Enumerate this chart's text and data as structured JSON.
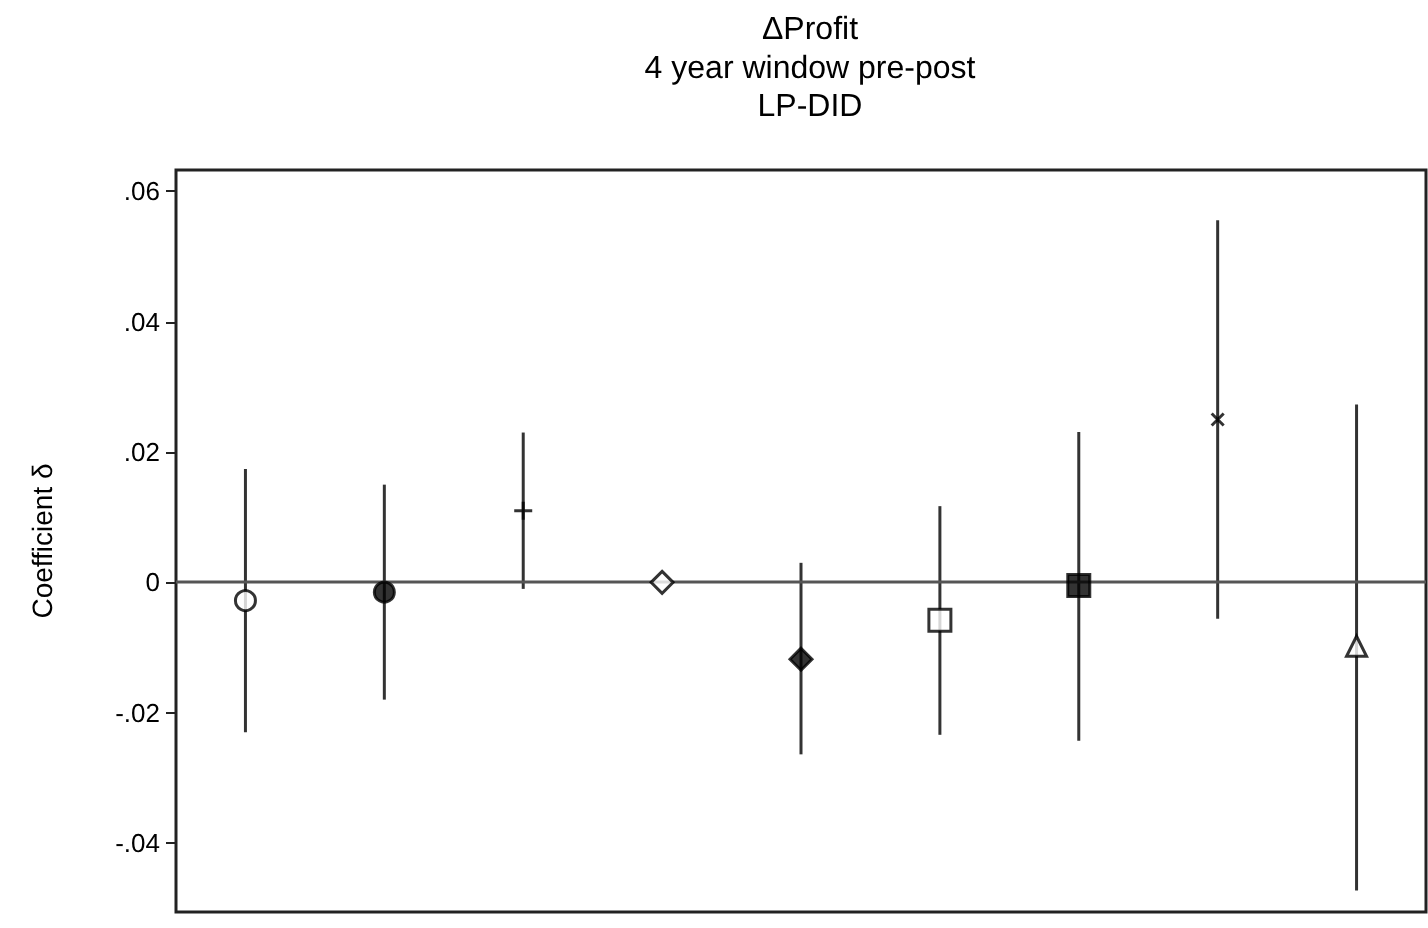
{
  "chart_data": {
    "type": "scatter",
    "title": "ΔProfit",
    "subtitle": "4 year window pre-post\nLP-DID",
    "ylabel": "Coefficient δ",
    "categories": [
      null,
      null,
      null,
      null,
      null,
      null,
      null,
      null,
      null
    ],
    "series": [
      {
        "color": "#000000",
        "marker": "circle",
        "values": [
          -0.0028,
          null,
          null,
          null,
          null,
          null,
          null,
          null,
          null
        ],
        "errors": [
          [
            -0.023,
            0.0174
          ],
          null,
          null,
          null,
          null,
          null,
          null,
          null,
          null
        ]
      },
      {
        "color": "#000000",
        "marker": "circle",
        "values": [
          null,
          -0.0015,
          null,
          null,
          null,
          null,
          null,
          null,
          null
        ],
        "errors": [
          null,
          [
            -0.018,
            0.015
          ],
          null,
          null,
          null,
          null,
          null,
          null,
          null
        ]
      },
      {
        "color": "#000000",
        "marker": "cross",
        "values": [
          null,
          null,
          0.011,
          null,
          null,
          null,
          null,
          null,
          null
        ],
        "errors": [
          null,
          null,
          [
            -0.001,
            0.023
          ],
          null,
          null,
          null,
          null,
          null,
          null
        ]
      },
      {
        "color": "#000000",
        "marker": "diamond",
        "values": [
          null,
          null,
          null,
          0,
          null,
          null,
          null,
          null,
          null
        ]
      },
      {
        "color": "#000000",
        "marker": "diamond",
        "values": [
          null,
          null,
          null,
          null,
          -0.0118,
          null,
          null,
          null,
          null
        ],
        "errors": [
          null,
          null,
          null,
          null,
          [
            -0.0264,
            0.003
          ],
          null,
          null,
          null,
          null
        ]
      },
      {
        "color": "#000000",
        "marker": "square",
        "values": [
          null,
          null,
          null,
          null,
          null,
          -0.0058,
          null,
          null,
          null
        ],
        "errors": [
          null,
          null,
          null,
          null,
          null,
          [
            -0.0234,
            0.0117
          ],
          null,
          null,
          null
        ]
      },
      {
        "color": "#000000",
        "marker": "square",
        "values": [
          null,
          null,
          null,
          null,
          null,
          null,
          -0.0005,
          null,
          null
        ],
        "errors": [
          null,
          null,
          null,
          null,
          null,
          null,
          [
            -0.0243,
            0.0231
          ],
          null,
          null
        ]
      },
      {
        "color": "#000000",
        "marker": "cross",
        "values": [
          null,
          null,
          null,
          null,
          null,
          null,
          null,
          0.025,
          null
        ],
        "errors": [
          null,
          null,
          null,
          null,
          null,
          null,
          null,
          [
            -0.0056,
            0.0556
          ],
          null
        ]
      },
      {
        "color": "#000000",
        "marker": "triangle",
        "values": [
          null,
          null,
          null,
          null,
          null,
          null,
          null,
          null,
          -0.0098
        ],
        "errors": [
          null,
          null,
          null,
          null,
          null,
          null,
          null,
          null,
          [
            -0.0473,
            0.0273
          ]
        ]
      }
    ],
    "ylim": [
      -0.0506,
      0.0633
    ],
    "yticks": [
      {
        "value": -0.04,
        "label": "-.04"
      },
      {
        "value": -0.02,
        "label": "-.02"
      },
      0,
      {
        "value": 0.02,
        "label": ".02"
      },
      {
        "value": 0.04,
        "label": ".04"
      },
      {
        "value": 0.06,
        "label": ".06"
      }
    ],
    "ref_lines": [
      {
        "axis": "y",
        "value": 0,
        "color": "#555555"
      }
    ],
    "grid": false
  }
}
